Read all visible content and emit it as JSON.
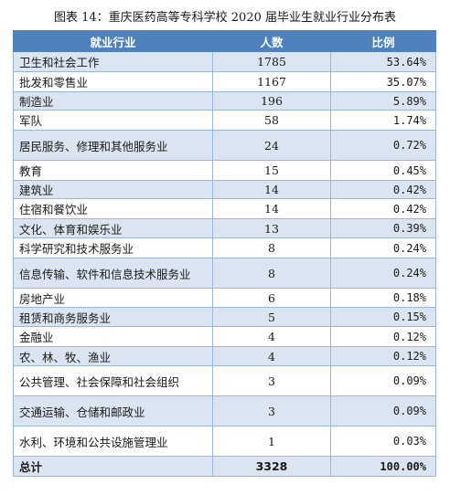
{
  "caption": "图表 14：重庆医药高等专科学校 2020 届毕业生就业行业分布表",
  "columns": [
    "就业行业",
    "人数",
    "比例"
  ],
  "rows": [
    {
      "industry": "卫生和社会工作",
      "count": "1785",
      "ratio": "53.64%"
    },
    {
      "industry": "批发和零售业",
      "count": "1167",
      "ratio": "35.07%"
    },
    {
      "industry": "制造业",
      "count": "196",
      "ratio": "5.89%"
    },
    {
      "industry": "军队",
      "count": "58",
      "ratio": "1.74%"
    },
    {
      "industry": "居民服务、修理和其他服务业",
      "count": "24",
      "ratio": "0.72%"
    },
    {
      "industry": "教育",
      "count": "15",
      "ratio": "0.45%"
    },
    {
      "industry": "建筑业",
      "count": "14",
      "ratio": "0.42%"
    },
    {
      "industry": "住宿和餐饮业",
      "count": "14",
      "ratio": "0.42%"
    },
    {
      "industry": "文化、体育和娱乐业",
      "count": "13",
      "ratio": "0.39%"
    },
    {
      "industry": "科学研究和技术服务业",
      "count": "8",
      "ratio": "0.24%"
    },
    {
      "industry": "信息传输、软件和信息技术服务业",
      "count": "8",
      "ratio": "0.24%"
    },
    {
      "industry": "房地产业",
      "count": "6",
      "ratio": "0.18%"
    },
    {
      "industry": "租赁和商务服务业",
      "count": "5",
      "ratio": "0.15%"
    },
    {
      "industry": "金融业",
      "count": "4",
      "ratio": "0.12%"
    },
    {
      "industry": "农、林、牧、渔业",
      "count": "4",
      "ratio": "0.12%"
    },
    {
      "industry": "公共管理、社会保障和社会组织",
      "count": "3",
      "ratio": "0.09%"
    },
    {
      "industry": "交通运输、仓储和邮政业",
      "count": "3",
      "ratio": "0.09%"
    },
    {
      "industry": "水利、环境和公共设施管理业",
      "count": "1",
      "ratio": "0.03%"
    }
  ],
  "total": {
    "label": "总计",
    "count": "3328",
    "ratio": "100.00%"
  },
  "colors": {
    "header": "#4f81bd",
    "band": "#dbe5f1",
    "border": "#9bb7d9"
  }
}
